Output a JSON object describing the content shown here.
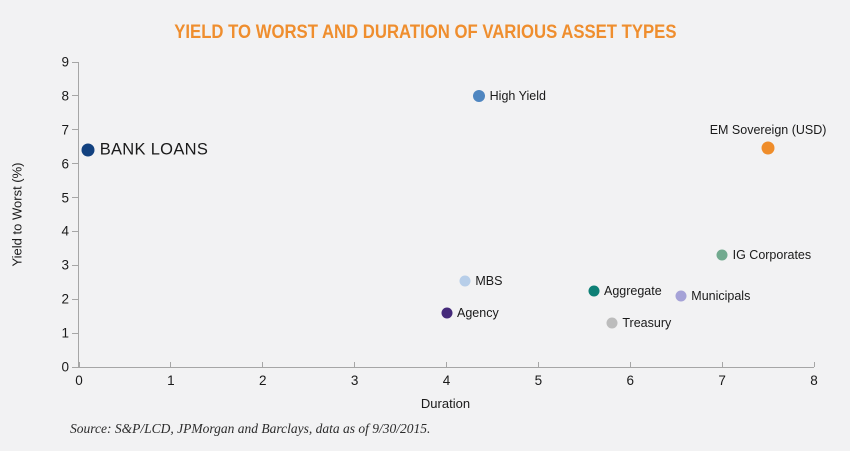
{
  "page": {
    "background": "#f2f2f3"
  },
  "chart_data": {
    "type": "scatter",
    "title": "YIELD TO WORST AND DURATION OF VARIOUS ASSET TYPES",
    "title_color": "#ef8e2e",
    "xlabel": "Duration",
    "ylabel": "Yield to Worst (%)",
    "xlim": [
      0,
      8
    ],
    "ylim": [
      0,
      9
    ],
    "xticks": [
      0,
      1,
      2,
      3,
      4,
      5,
      6,
      7,
      8
    ],
    "yticks": [
      0,
      1,
      2,
      3,
      4,
      5,
      6,
      7,
      8,
      9
    ],
    "grid": false,
    "legend": "none",
    "axis_color": "#a6a6a6",
    "points": [
      {
        "name": "BANK LOANS",
        "x": 0.1,
        "y": 6.4,
        "color": "#12417f",
        "size": 13,
        "label_placement": "right",
        "label_style": "large"
      },
      {
        "name": "High Yield",
        "x": 4.35,
        "y": 8.0,
        "color": "#4f86c0",
        "size": 12,
        "label_placement": "right"
      },
      {
        "name": "EM Sovereign (USD)",
        "x": 7.5,
        "y": 6.45,
        "color": "#ef8d2a",
        "size": 13,
        "label_placement": "above"
      },
      {
        "name": "IG Corporates",
        "x": 7.0,
        "y": 3.3,
        "color": "#72aa8f",
        "size": 11,
        "label_placement": "right"
      },
      {
        "name": "MBS",
        "x": 4.2,
        "y": 2.55,
        "color": "#b7cee9",
        "size": 11,
        "label_placement": "right"
      },
      {
        "name": "Aggregate",
        "x": 5.6,
        "y": 2.25,
        "color": "#0e8076",
        "size": 11,
        "label_placement": "right"
      },
      {
        "name": "Municipals",
        "x": 6.55,
        "y": 2.1,
        "color": "#a5a2d7",
        "size": 11,
        "label_placement": "right"
      },
      {
        "name": "Treasury",
        "x": 5.8,
        "y": 1.3,
        "color": "#bcbcbc",
        "size": 11,
        "label_placement": "right"
      },
      {
        "name": "Agency",
        "x": 4.0,
        "y": 1.6,
        "color": "#452a7a",
        "size": 11,
        "label_placement": "right"
      }
    ],
    "source": "Source: S&P/LCD, JPMorgan and Barclays, data as of 9/30/2015."
  }
}
